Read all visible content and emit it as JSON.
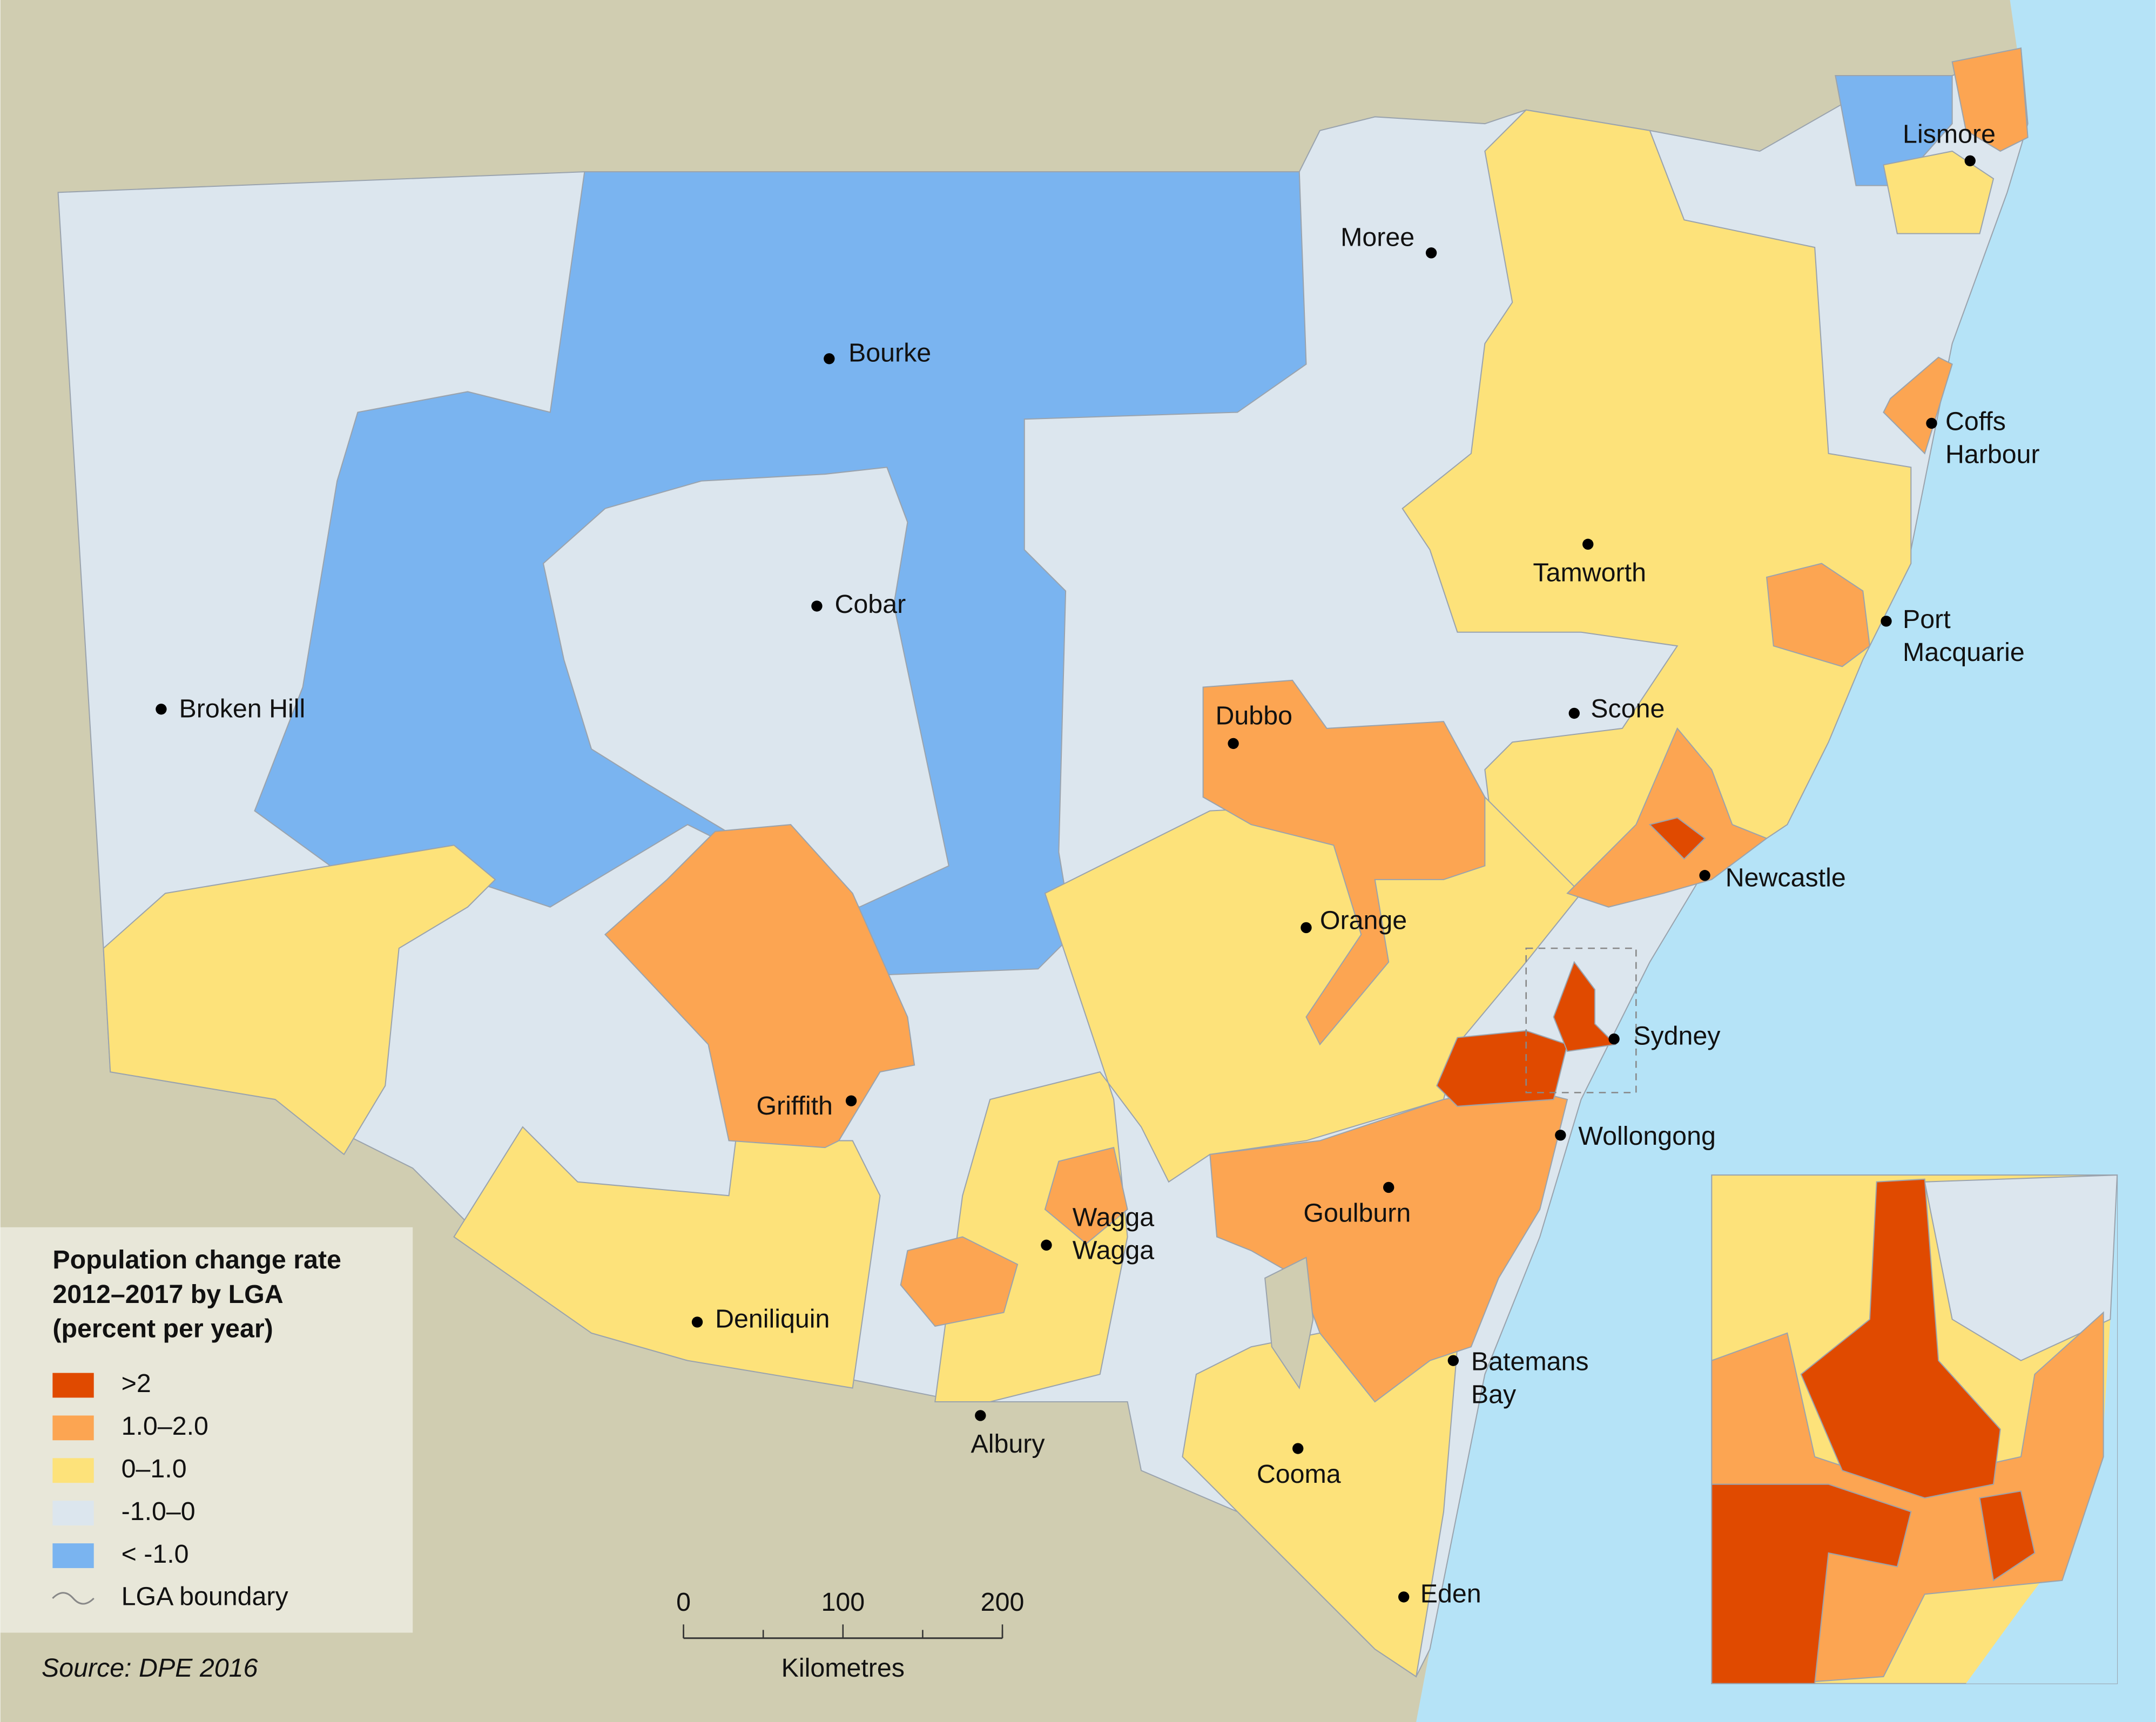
{
  "legend": {
    "title_lines": [
      "Population change rate",
      "2012–2017 by LGA",
      "(percent per year)"
    ],
    "items": [
      {
        "label": ">2",
        "color": "#e04a00"
      },
      {
        "label": "1.0–2.0",
        "color": "#fca552"
      },
      {
        "label": "0–1.0",
        "color": "#fde27a"
      },
      {
        "label": "-1.0–0",
        "color": "#dce6ee"
      },
      {
        "label": "< -1.0",
        "color": "#7ab4f0"
      }
    ],
    "boundary_label": "LGA boundary"
  },
  "cities": [
    {
      "lines": [
        "Moree"
      ]
    },
    {
      "lines": [
        "Bourke"
      ]
    },
    {
      "lines": [
        "Lismore"
      ]
    },
    {
      "lines": [
        "Coffs",
        "Harbour"
      ]
    },
    {
      "lines": [
        "Tamworth"
      ]
    },
    {
      "lines": [
        "Cobar"
      ]
    },
    {
      "lines": [
        "Port",
        "Macquarie"
      ]
    },
    {
      "lines": [
        "Broken Hill"
      ]
    },
    {
      "lines": [
        "Dubbo"
      ]
    },
    {
      "lines": [
        "Scone"
      ]
    },
    {
      "lines": [
        "Newcastle"
      ]
    },
    {
      "lines": [
        "Orange"
      ]
    },
    {
      "lines": [
        "Sydney"
      ]
    },
    {
      "lines": [
        "Griffith"
      ]
    },
    {
      "lines": [
        "Wollongong"
      ]
    },
    {
      "lines": [
        "Goulburn"
      ]
    },
    {
      "lines": [
        "Wagga",
        "Wagga"
      ]
    },
    {
      "lines": [
        "Deniliquin"
      ]
    },
    {
      "lines": [
        "Batemans",
        "Bay"
      ]
    },
    {
      "lines": [
        "Albury"
      ]
    },
    {
      "lines": [
        "Cooma"
      ]
    },
    {
      "lines": [
        "Eden"
      ]
    }
  ],
  "scale": {
    "ticks": [
      0,
      100,
      200
    ],
    "unit_label": "Kilometres"
  },
  "source": "Source: DPE 2016"
}
